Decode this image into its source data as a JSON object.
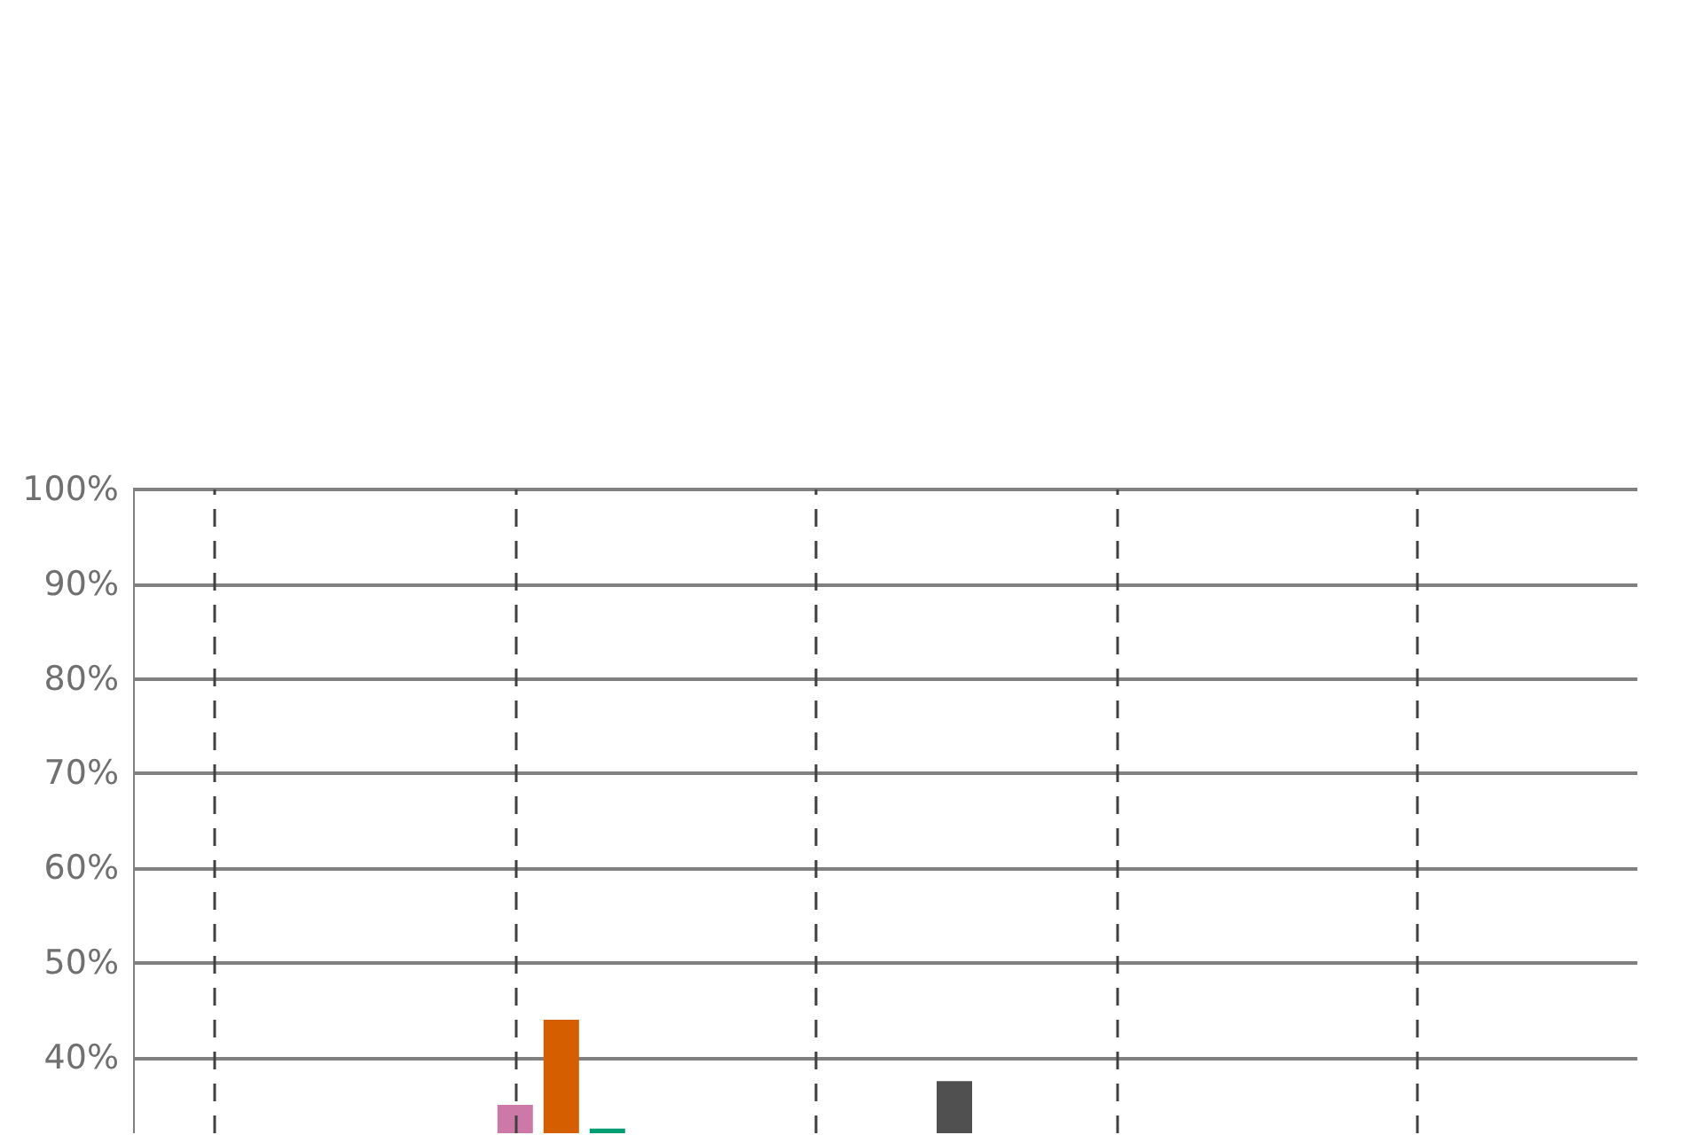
{
  "chart_data": {
    "type": "bar",
    "tick_labels": "y",
    "categories": [
      null,
      null,
      null,
      null,
      null
    ],
    "ylim": [
      32,
      100
    ],
    "yticks": [
      {
        "value": 40,
        "label": "40%"
      },
      {
        "value": 50,
        "label": "50%"
      },
      {
        "value": 60,
        "label": "60%"
      },
      {
        "value": 70,
        "label": "70%"
      },
      {
        "value": 80,
        "label": "80%"
      },
      {
        "value": 90,
        "label": "90%"
      },
      {
        "value": 100,
        "label": "100%"
      }
    ],
    "grid": true,
    "series": [
      {
        "color": "#cc79a7",
        "values": [
          null,
          35,
          null,
          null,
          null
        ]
      },
      {
        "color": "#d55e00",
        "values": [
          null,
          44,
          null,
          null,
          null
        ]
      },
      {
        "color": "#009e73",
        "values": [
          null,
          32.5,
          null,
          null,
          null
        ]
      },
      {
        "color": "#505050",
        "values": [
          null,
          null,
          37.5,
          null,
          null
        ]
      }
    ]
  }
}
